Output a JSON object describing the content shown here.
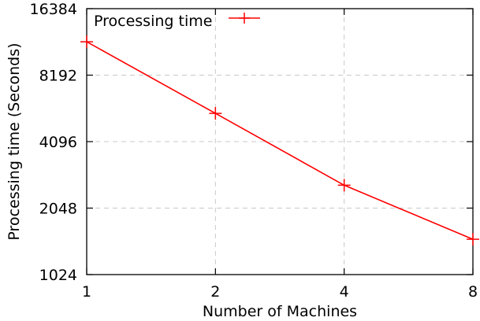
{
  "chart_data": {
    "type": "line",
    "xlabel": "Number of Machines",
    "ylabel": "Processing time (Seconds)",
    "x_scale": "log2",
    "y_scale": "log2",
    "xlim": [
      1,
      8
    ],
    "ylim": [
      1024,
      16384
    ],
    "x_ticks": [
      "1",
      "2",
      "4",
      "8"
    ],
    "y_ticks": [
      "1024",
      "2048",
      "4096",
      "8192",
      "16384"
    ],
    "grid": true,
    "legend_position": "top-left",
    "series": [
      {
        "name": "Processing time",
        "color": "#ff0000",
        "marker": "plus",
        "x": [
          1,
          2,
          4,
          8
        ],
        "y": [
          11600,
          5500,
          2600,
          1480
        ]
      }
    ]
  }
}
